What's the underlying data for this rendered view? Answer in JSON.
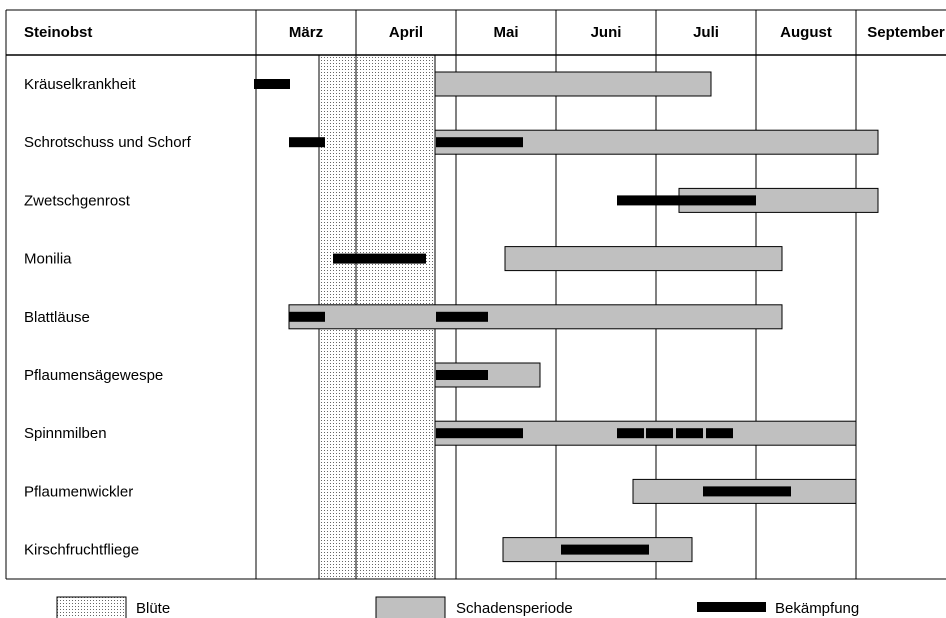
{
  "chart_data": {
    "type": "gantt",
    "title": "Steinobst",
    "months": [
      "März",
      "April",
      "Mai",
      "Juni",
      "Juli",
      "August",
      "September"
    ],
    "x_unit": "month index (0 = start of März)",
    "xlim": [
      0,
      7
    ],
    "bloom_period": {
      "label": "Blüte",
      "start": 0.63,
      "end": 1.79
    },
    "legend": {
      "bloom": "Blüte",
      "damage": "Schadensperiode",
      "control": "Bekämpfung"
    },
    "rows": [
      {
        "name": "Kräuselkrankheit",
        "damage": [
          [
            1.79,
            4.55
          ]
        ],
        "control": [
          [
            -0.02,
            0.34
          ]
        ]
      },
      {
        "name": "Schrotschuss und Schorf",
        "damage": [
          [
            1.79,
            6.22
          ]
        ],
        "control": [
          [
            0.33,
            0.69
          ],
          [
            1.8,
            2.67
          ]
        ]
      },
      {
        "name": "Zwetschgenrost",
        "damage": [
          [
            4.23,
            6.22
          ]
        ],
        "control": [
          [
            3.61,
            5.0
          ]
        ]
      },
      {
        "name": "Monilia",
        "damage": [
          [
            2.49,
            5.26
          ]
        ],
        "control": [
          [
            0.77,
            1.7
          ]
        ]
      },
      {
        "name": "Blattläuse",
        "damage": [
          [
            0.33,
            5.26
          ]
        ],
        "control": [
          [
            0.33,
            0.69
          ],
          [
            1.8,
            2.32
          ]
        ]
      },
      {
        "name": "Pflaumensägewespe",
        "damage": [
          [
            1.79,
            2.84
          ]
        ],
        "control": [
          [
            1.8,
            2.32
          ]
        ]
      },
      {
        "name": "Spinnmilben",
        "damage": [
          [
            1.79,
            6.0
          ]
        ],
        "control": [
          [
            1.8,
            2.67
          ],
          [
            3.61,
            3.88
          ],
          [
            3.9,
            4.17
          ],
          [
            4.2,
            4.47
          ],
          [
            4.5,
            4.77
          ]
        ]
      },
      {
        "name": "Pflaumenwickler",
        "damage": [
          [
            3.77,
            6.0
          ]
        ],
        "control": [
          [
            4.47,
            5.35
          ]
        ]
      },
      {
        "name": "Kirschfruchtfliege",
        "damage": [
          [
            2.47,
            4.36
          ]
        ],
        "control": [
          [
            3.05,
            3.93
          ]
        ]
      }
    ]
  }
}
